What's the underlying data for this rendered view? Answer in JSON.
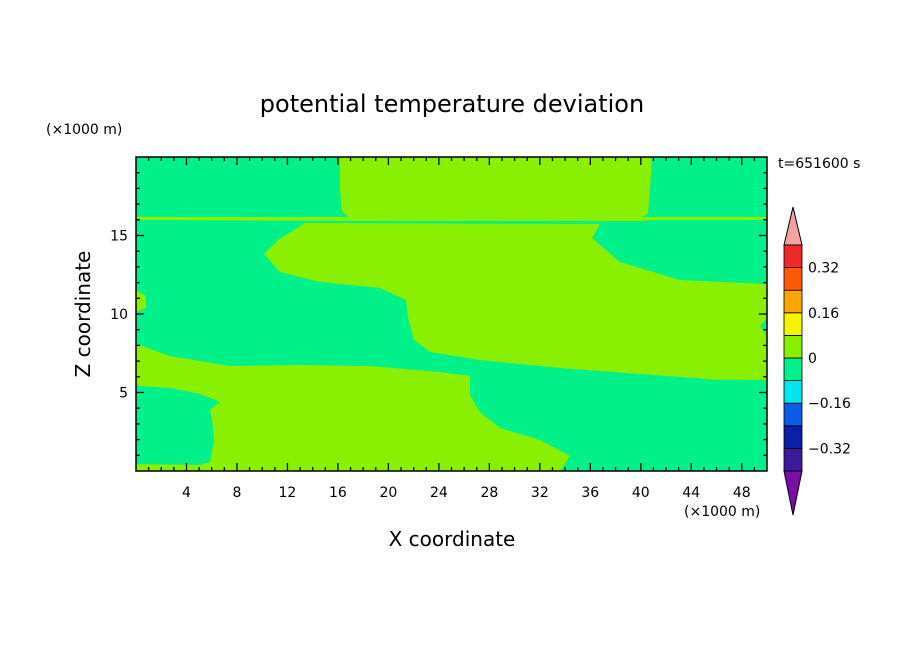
{
  "chart_data": {
    "type": "heatmap",
    "title": "potential temperature deviation",
    "xlabel": "X coordinate",
    "ylabel": "Z coordinate",
    "x_unit": "(×1000 m)",
    "y_unit": "(×1000 m)",
    "time_label": "t=651600 s",
    "xlim": [
      0,
      50
    ],
    "ylim": [
      0,
      20
    ],
    "xticks": [
      4,
      8,
      12,
      16,
      20,
      24,
      28,
      32,
      36,
      40,
      44,
      48
    ],
    "yticks": [
      5,
      10,
      15
    ],
    "colorbar": {
      "levels": [
        -0.4,
        -0.32,
        -0.24,
        -0.16,
        -0.08,
        0,
        0.08,
        0.16,
        0.24,
        0.32,
        0.4
      ],
      "labels": [
        "0.32",
        "0.16",
        "0",
        "−0.16",
        "−0.32"
      ],
      "label_values": [
        0.32,
        0.16,
        0,
        -0.16,
        -0.32
      ],
      "colors": [
        "#7a0fa8",
        "#3c1a9a",
        "#0a1faa",
        "#0a5ce8",
        "#00e6f0",
        "#00f08a",
        "#88f000",
        "#f5f500",
        "#ffa500",
        "#ff5a00",
        "#f02828",
        "#f4a3a3"
      ],
      "color_order": "bottom-to-top (first = under-range, last = over-range)"
    },
    "regions": {
      "background_class": "-0.08 to 0",
      "background_color": "#00f08a",
      "feature_class": "0 to 0.08",
      "feature_color": "#88f000"
    }
  }
}
